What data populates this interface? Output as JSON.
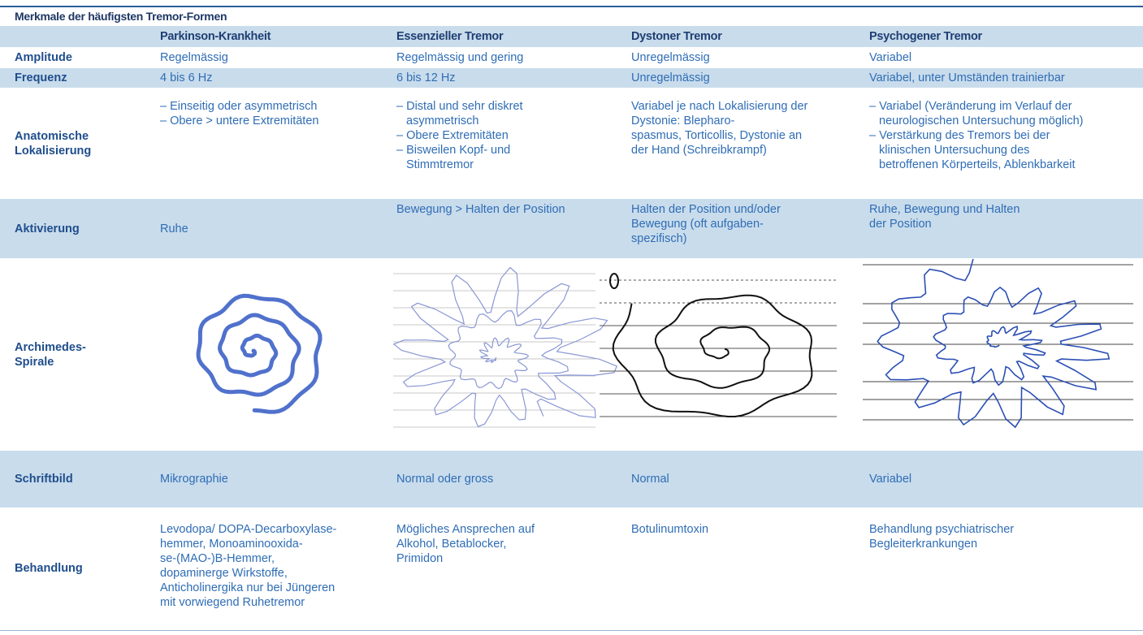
{
  "table": {
    "title": "Merkmale der häufigsten Tremor-Formen",
    "header": [
      "Parkinson-Krankheit",
      "Essenzieller Tremor",
      "Dystoner Tremor",
      "Psychogener Tremor"
    ],
    "rows": [
      {
        "label": [
          "Amplitude"
        ],
        "cells": [
          [
            "Regelmässig"
          ],
          [
            "Regelmässig und gering"
          ],
          [
            "Unregelmässig"
          ],
          [
            "Variabel"
          ]
        ]
      },
      {
        "label": [
          "Frequenz"
        ],
        "cells": [
          [
            "4 bis 6 Hz"
          ],
          [
            "6 bis 12 Hz"
          ],
          [
            "Unregelmässig"
          ],
          [
            "Variabel, unter Umständen trainierbar"
          ]
        ]
      },
      {
        "label": [
          "Anatomische",
          "Lokalisierung"
        ],
        "cells": [
          [
            "– Einseitig oder asymmetrisch",
            "– Obere > untere Extremitäten"
          ],
          [
            "– Distal und sehr diskret",
            "asymmetrisch",
            "– Obere Extremitäten",
            "– Bisweilen Kopf- und",
            "Stimmtremor"
          ],
          [
            "Variabel je nach Lokalisierung der",
            "Dystonie: Blepharo-",
            "spasmus, Torticollis, Dystonie an",
            "der Hand (Schreibkrampf)"
          ],
          [
            "– Variabel (Veränderung im Verlauf der",
            "neurologischen Untersuchung möglich)",
            "– Verstärkung des Tremors bei der",
            "klinischen Untersuchung des",
            "betroffenen Körperteils, Ablenkbarkeit"
          ]
        ]
      },
      {
        "label": [
          "Aktivierung"
        ],
        "cells": [
          [
            "Ruhe"
          ],
          [
            "Bewegung > Halten der Position"
          ],
          [
            "Halten der Position und/oder",
            "Bewegung (oft aufgaben-",
            "spezifisch)"
          ],
          [
            "Ruhe, Bewegung und Halten",
            "der Position"
          ]
        ]
      },
      {
        "label": [
          "Archimedes-",
          "Spirale"
        ]
      },
      {
        "label": [
          "Schriftbild"
        ],
        "cells": [
          [
            "Mikrographie"
          ],
          [
            "Normal oder gross"
          ],
          [
            "Normal"
          ],
          [
            "Variabel"
          ]
        ]
      },
      {
        "label": [
          "Behandlung"
        ],
        "cells": [
          [
            "Levodopa/ DOPA-Decarboxylase-",
            "hemmer, Monoaminooxida-",
            "se-(MAO-)B-Hemmer,",
            "dopaminerge Wirkstoffe,",
            "Anticholinergika nur bei Jüngeren",
            "mit vorwiegend Ruhetremor"
          ],
          [
            "Mögliches Ansprechen auf",
            "Alkohol, Betablocker,",
            "Primidon"
          ],
          [
            "Botulinumtoxin"
          ],
          [
            "Behandlung psychiatrischer",
            "Begleiterkrankungen"
          ]
        ]
      }
    ]
  }
}
